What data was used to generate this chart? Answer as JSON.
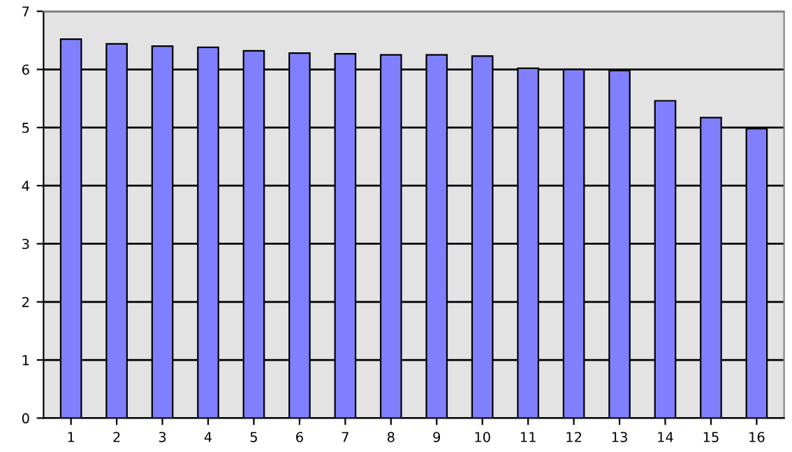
{
  "chart_data": {
    "type": "bar",
    "categories": [
      "1",
      "2",
      "3",
      "4",
      "5",
      "6",
      "7",
      "8",
      "9",
      "10",
      "11",
      "12",
      "13",
      "14",
      "15",
      "16"
    ],
    "values": [
      6.52,
      6.44,
      6.4,
      6.38,
      6.32,
      6.28,
      6.27,
      6.25,
      6.25,
      6.23,
      6.02,
      6.0,
      5.98,
      5.46,
      5.17,
      4.98
    ],
    "color": "#8080ff",
    "ylim": [
      0,
      7
    ],
    "yticks": [
      0,
      1,
      2,
      3,
      4,
      5,
      6,
      7
    ],
    "grid": "y"
  }
}
